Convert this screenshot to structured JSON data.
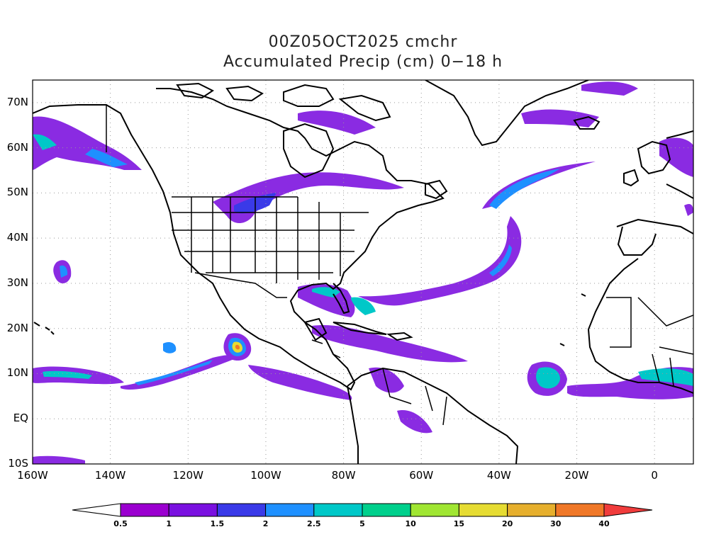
{
  "title": {
    "line1": "00Z05OCT2025 cmchr",
    "line2": "Accumulated Precip (cm) 0−18 h"
  },
  "map": {
    "projection": "cylindrical equidistant",
    "lon_range": [
      -160,
      10
    ],
    "lat_range": [
      -10,
      75
    ],
    "grid": true,
    "lat_labels": [
      "70N",
      "60N",
      "50N",
      "40N",
      "30N",
      "20N",
      "10N",
      "EQ",
      "10S"
    ],
    "lon_labels": [
      "160W",
      "140W",
      "120W",
      "100W",
      "80W",
      "60W",
      "40W",
      "20W",
      "0"
    ]
  },
  "colorbar": {
    "labels": [
      "0.5",
      "1",
      "1.5",
      "2",
      "2.5",
      "5",
      "10",
      "15",
      "20",
      "30",
      "40"
    ],
    "colors": [
      "#9b00d0",
      "#7a10e0",
      "#3a3ae8",
      "#1e90ff",
      "#00c8c8",
      "#00d08c",
      "#a0e632",
      "#e6dc32",
      "#e6af2d",
      "#f07828",
      "#f03c3c"
    ],
    "below_color": "#ffffff",
    "above_color": "#f03c3c"
  },
  "colors": {
    "coast": "#000000",
    "grid": "#999999"
  }
}
